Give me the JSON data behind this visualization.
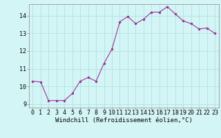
{
  "x": [
    0,
    1,
    2,
    3,
    4,
    5,
    6,
    7,
    8,
    9,
    10,
    11,
    12,
    13,
    14,
    15,
    16,
    17,
    18,
    19,
    20,
    21,
    22,
    23
  ],
  "y": [
    10.3,
    10.25,
    9.2,
    9.2,
    9.2,
    9.6,
    10.3,
    10.5,
    10.3,
    11.3,
    12.1,
    13.65,
    13.95,
    13.55,
    13.8,
    14.2,
    14.2,
    14.5,
    14.1,
    13.7,
    13.55,
    13.25,
    13.3,
    13.0
  ],
  "line_color": "#993399",
  "marker_color": "#993399",
  "bg_color": "#d4f5f5",
  "grid_color": "#aadddd",
  "xlabel": "Windchill (Refroidissement éolien,°C)",
  "xlim": [
    -0.5,
    23.5
  ],
  "ylim": [
    8.8,
    14.65
  ],
  "yticks": [
    9,
    10,
    11,
    12,
    13,
    14
  ],
  "xtick_labels": [
    "0",
    "1",
    "2",
    "3",
    "4",
    "5",
    "6",
    "7",
    "8",
    "9",
    "10",
    "11",
    "12",
    "13",
    "14",
    "15",
    "16",
    "17",
    "18",
    "19",
    "20",
    "21",
    "22",
    "23"
  ],
  "tick_fontsize": 6.0,
  "xlabel_fontsize": 6.5
}
